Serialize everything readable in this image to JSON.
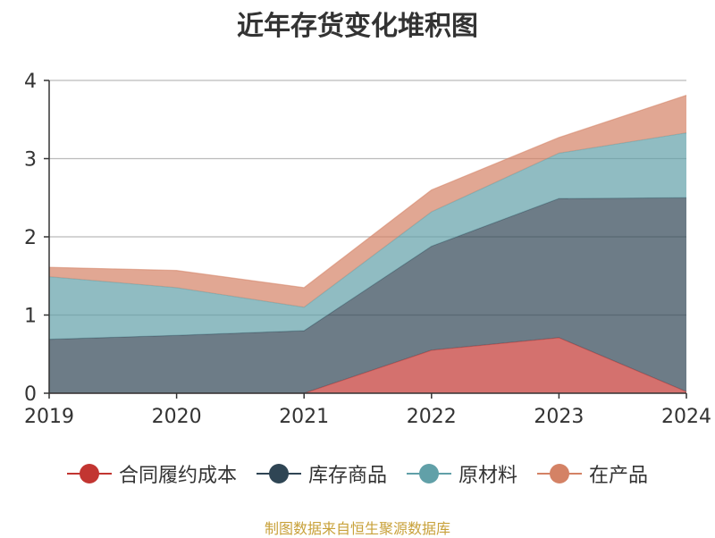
{
  "chart_data": {
    "type": "area",
    "stacked": true,
    "title": "近年存货变化堆积图",
    "x": [
      "2019",
      "2020",
      "2021",
      "2022",
      "2023",
      "2024"
    ],
    "ylim": [
      0,
      4
    ],
    "yticks": [
      "0",
      "1",
      "2",
      "3",
      "4"
    ],
    "grid": true,
    "legend_position": "bottom",
    "series": [
      {
        "name": "合同履约成本",
        "color": "#c23531",
        "values": [
          0,
          0,
          0,
          0.55,
          0.71,
          0.02
        ]
      },
      {
        "name": "库存商品",
        "color": "#2f4554",
        "values": [
          0.69,
          0.74,
          0.8,
          1.33,
          1.78,
          2.48
        ]
      },
      {
        "name": "原材料",
        "color": "#61a0a8",
        "values": [
          0.8,
          0.61,
          0.3,
          0.44,
          0.58,
          0.83
        ]
      },
      {
        "name": "在产品",
        "color": "#d48265",
        "values": [
          0.12,
          0.22,
          0.25,
          0.28,
          0.2,
          0.48
        ]
      }
    ]
  },
  "source_note": "制图数据来自恒生聚源数据库"
}
